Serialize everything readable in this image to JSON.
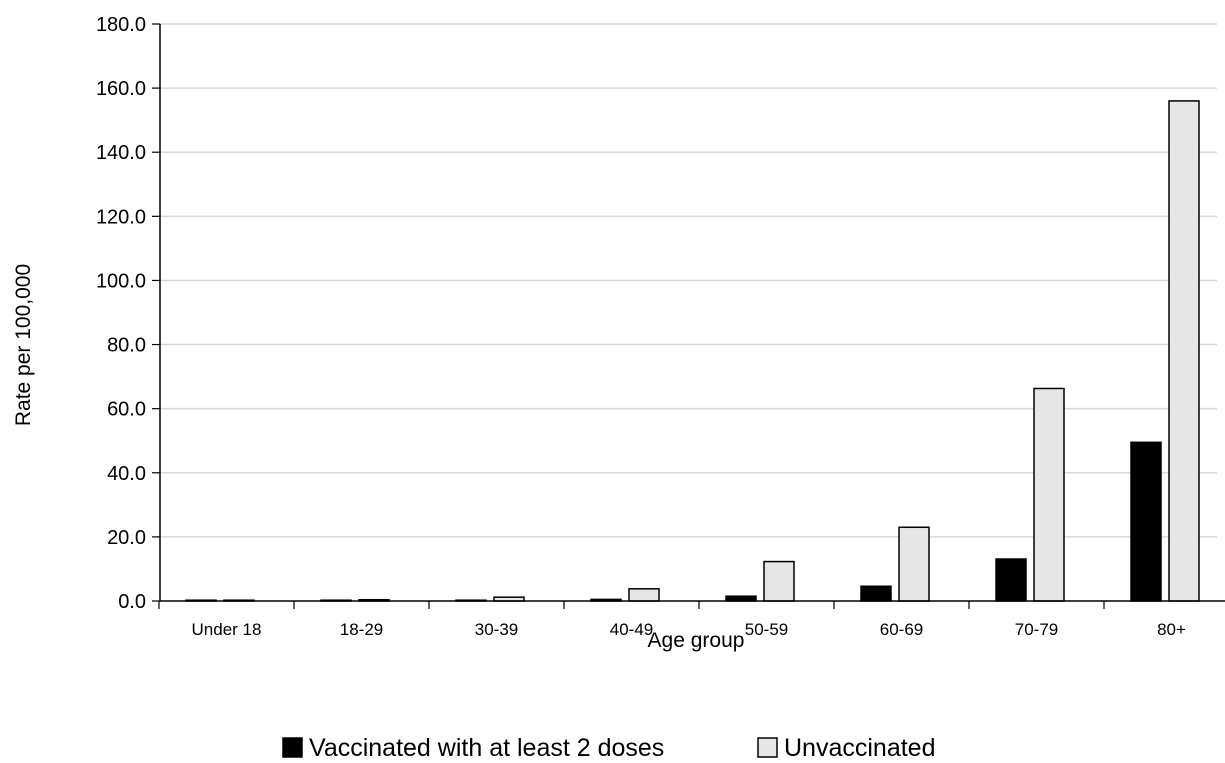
{
  "chart_data": {
    "type": "bar",
    "xlabel": "Age group",
    "ylabel": "Rate per 100,000",
    "ylim": [
      0,
      180
    ],
    "yticks": [
      "0.0",
      "20.0",
      "40.0",
      "60.0",
      "80.0",
      "100.0",
      "120.0",
      "140.0",
      "160.0",
      "180.0"
    ],
    "grid": true,
    "legend_position": "bottom",
    "categories": [
      "Under 18",
      "18-29",
      "30-39",
      "40-49",
      "50-59",
      "60-69",
      "70-79",
      "80+"
    ],
    "series": [
      {
        "name": "Vaccinated with at least 2 doses",
        "color": "#000000",
        "values": [
          0.0,
          0.1,
          0.2,
          0.5,
          1.5,
          4.6,
          13.1,
          49.5
        ]
      },
      {
        "name": "Unvaccinated",
        "color": "#e6e6e6",
        "values": [
          0.0,
          0.4,
          1.2,
          3.8,
          12.3,
          23.0,
          66.3,
          156.0
        ]
      }
    ]
  }
}
